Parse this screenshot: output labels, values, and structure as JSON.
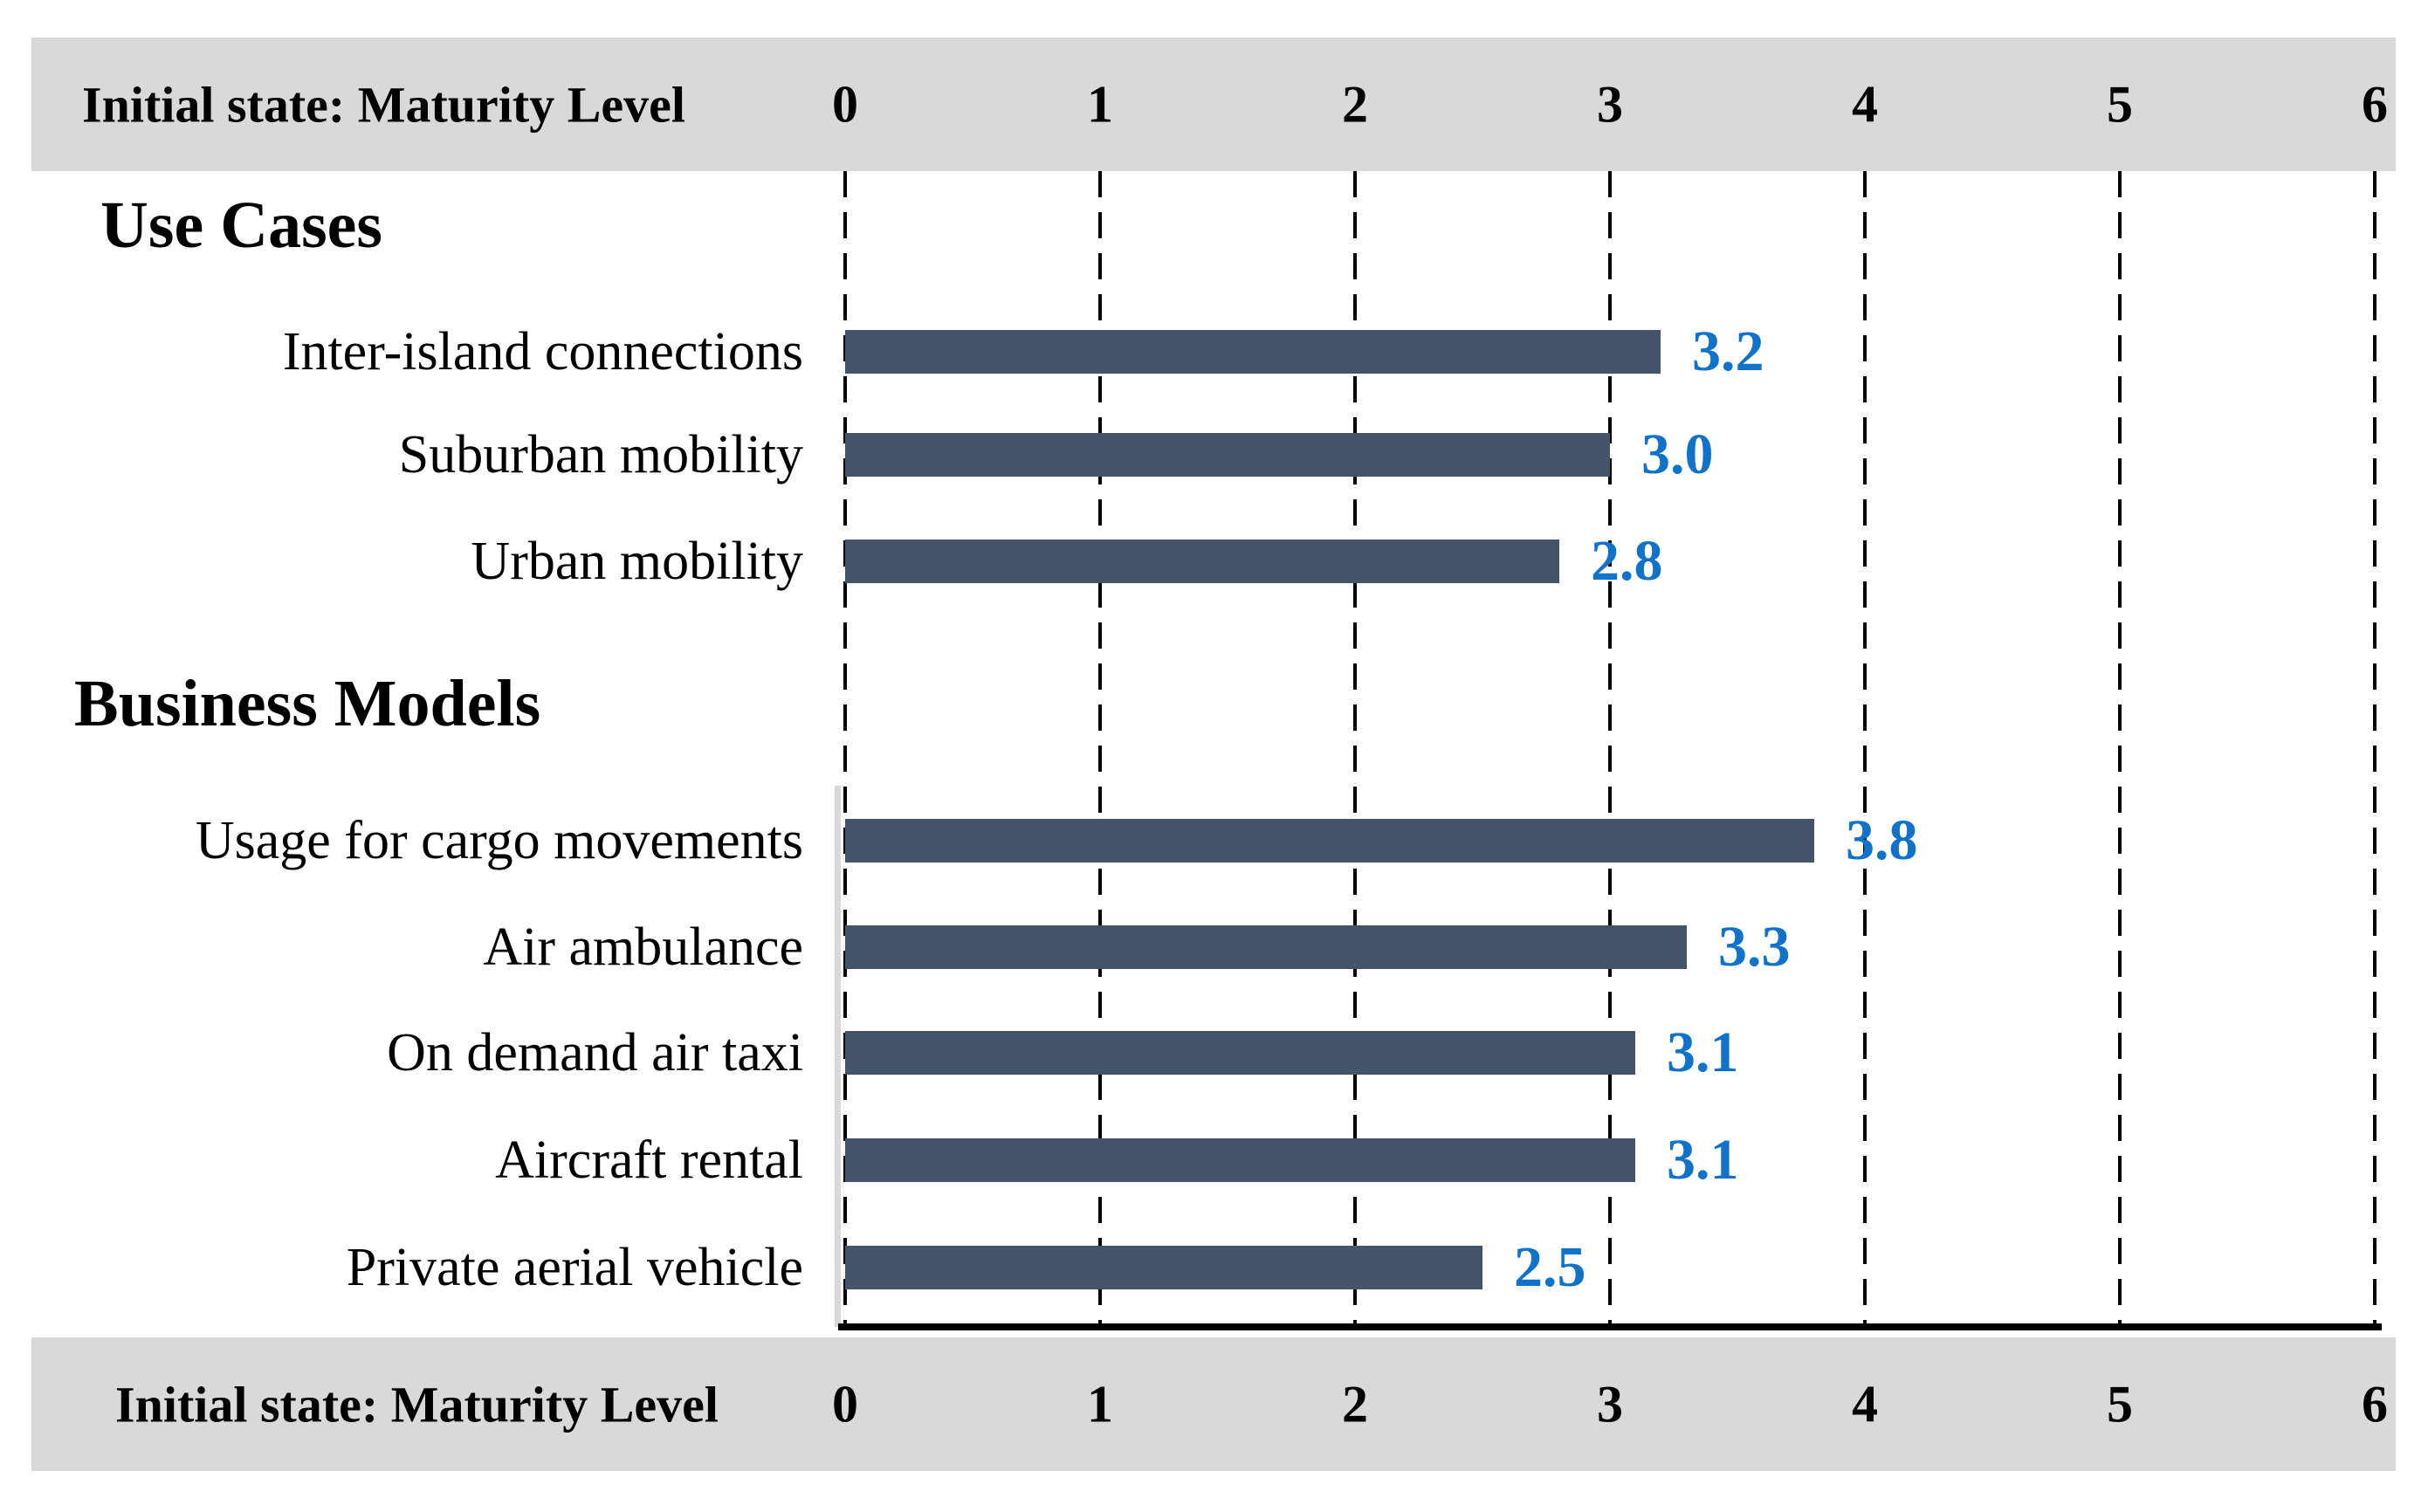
{
  "chart_data": {
    "type": "bar",
    "orientation": "horizontal",
    "axis_title": "Initial state: Maturity Level",
    "axis_title_position": "repeated top and bottom",
    "xlim": [
      0,
      6
    ],
    "x_ticks": [
      0,
      1,
      2,
      3,
      4,
      5,
      6
    ],
    "gridlines": "vertical-dashed",
    "legend": "none",
    "sections": [
      {
        "heading": "Use Cases",
        "items": [
          {
            "label": "Inter-island connections",
            "value": 3.2,
            "display": "3.2"
          },
          {
            "label": "Suburban mobility",
            "value": 3.0,
            "display": "3.0"
          },
          {
            "label": "Urban mobility",
            "value": 2.8,
            "display": "2.8"
          }
        ]
      },
      {
        "heading": "Business Models",
        "items": [
          {
            "label": "Usage for cargo movements",
            "value": 3.8,
            "display": "3.8"
          },
          {
            "label": "Air ambulance",
            "value": 3.3,
            "display": "3.3"
          },
          {
            "label": "On demand air taxi",
            "value": 3.1,
            "display": "3.1"
          },
          {
            "label": "Aircraft rental",
            "value": 3.1,
            "display": "3.1"
          },
          {
            "label": "Private aerial vehicle",
            "value": 2.5,
            "display": "2.5"
          }
        ]
      }
    ],
    "colors": {
      "bar": "#45536A",
      "value_label": "#1072C8",
      "band_background": "#D9D9D9",
      "grid": "#000000",
      "text": "#000000"
    }
  }
}
